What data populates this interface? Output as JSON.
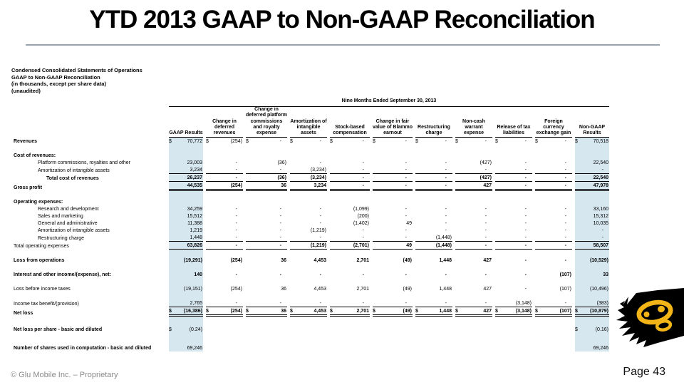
{
  "slide": {
    "title": "YTD 2013 GAAP to Non-GAAP Reconciliation",
    "footer_left": "© Glu Mobile Inc. – Proprietary",
    "footer_right": "Page 43"
  },
  "statement_header": {
    "line1": "Condensed Consolidated Statements of Operations",
    "line2": "GAAP to Non-GAAP Reconciliation",
    "line3": "(in thousands, except per share data)",
    "line4": "(unaudited)"
  },
  "table": {
    "period_header": "Nine Months Ended September 30, 2013",
    "highlight_color": "#d6e7f0",
    "columns": [
      "GAAP Results",
      "Change in deferred revenues",
      "Change in deferred platform commissions and royalty expense",
      "Amortization of intangible assets",
      "Stock-based compensation",
      "Change in fair value of Blammo earnout",
      "Restructuring charge",
      "Non-cash warrant expense",
      "Release of tax liabilities",
      "Foreign currency exchange gain",
      "Non-GAAP Results"
    ],
    "rows": [
      {
        "label": "Revenues",
        "label_bold": true,
        "values_bold": false,
        "indent": 0,
        "dollar": "all",
        "underline": "none",
        "values": [
          "70,772",
          "(254)",
          "-",
          "-",
          "-",
          "-",
          "-",
          "-",
          "-",
          "-",
          "70,518"
        ]
      },
      {
        "type": "spacer",
        "h": 6
      },
      {
        "label": "Cost of revenues:",
        "label_bold": true,
        "values_bold": false,
        "indent": 0,
        "dollar": "none",
        "underline": "none",
        "values": [
          "",
          "",
          "",
          "",
          "",
          "",
          "",
          "",
          "",
          "",
          ""
        ]
      },
      {
        "label": "Platform commissions, royalties and other",
        "label_bold": false,
        "values_bold": false,
        "indent": 1,
        "dollar": "none",
        "underline": "none",
        "values": [
          "23,003",
          "-",
          "(36)",
          "-",
          "-",
          "-",
          "-",
          "(427)",
          "-",
          "-",
          "22,540"
        ]
      },
      {
        "label": "Amortization of intangible assets",
        "label_bold": false,
        "values_bold": false,
        "indent": 1,
        "dollar": "none",
        "underline": "single",
        "values": [
          "3,234",
          "-",
          "-",
          "(3,234)",
          "-",
          "-",
          "-",
          "-",
          "-",
          "-",
          "-"
        ]
      },
      {
        "label": "Total cost of revenues",
        "label_bold": true,
        "values_bold": true,
        "indent": 2,
        "dollar": "none",
        "underline": "single",
        "values": [
          "26,237",
          "-",
          "(36)",
          "(3,234)",
          "-",
          "-",
          "-",
          "(427)",
          "-",
          "-",
          "22,540"
        ]
      },
      {
        "label": "Gross profit",
        "label_bold": true,
        "values_bold": true,
        "indent": 0,
        "dollar": "none",
        "underline": "double",
        "values": [
          "44,535",
          "(254)",
          "36",
          "3,234",
          "-",
          "-",
          "-",
          "427",
          "-",
          "-",
          "47,978"
        ]
      },
      {
        "type": "spacer",
        "h": 7
      },
      {
        "label": "Operating expenses:",
        "label_bold": true,
        "values_bold": false,
        "indent": 0,
        "dollar": "none",
        "underline": "none",
        "values": [
          "",
          "",
          "",
          "",
          "",
          "",
          "",
          "",
          "",
          "",
          ""
        ]
      },
      {
        "label": "Research and development",
        "label_bold": false,
        "values_bold": false,
        "indent": 1,
        "dollar": "none",
        "underline": "none",
        "values": [
          "34,259",
          "-",
          "-",
          "-",
          "(1,099)",
          "-",
          "-",
          "-",
          "-",
          "-",
          "33,160"
        ]
      },
      {
        "label": "Sales and marketing",
        "label_bold": false,
        "values_bold": false,
        "indent": 1,
        "dollar": "none",
        "underline": "none",
        "values": [
          "15,512",
          "-",
          "-",
          "-",
          "(200)",
          "-",
          "-",
          "-",
          "-",
          "-",
          "15,312"
        ]
      },
      {
        "label": "General and administrative",
        "label_bold": false,
        "values_bold": false,
        "indent": 1,
        "dollar": "none",
        "underline": "none",
        "values": [
          "11,388",
          "-",
          "-",
          "-",
          "(1,402)",
          "49",
          "-",
          "-",
          "-",
          "-",
          "10,035"
        ]
      },
      {
        "label": "Amortization of intangible assets",
        "label_bold": false,
        "values_bold": false,
        "indent": 1,
        "dollar": "none",
        "underline": "none",
        "values": [
          "1,219",
          "-",
          "-",
          "(1,219)",
          "-",
          "-",
          "-",
          "-",
          "-",
          "-",
          "-"
        ]
      },
      {
        "label": "Restructuring charge",
        "label_bold": false,
        "values_bold": false,
        "indent": 1,
        "dollar": "none",
        "underline": "single",
        "values": [
          "1,448",
          "-",
          "-",
          "-",
          "-",
          "-",
          "(1,448)",
          "-",
          "-",
          "-",
          "-"
        ]
      },
      {
        "label": "Total operating expenses",
        "label_bold": false,
        "values_bold": true,
        "indent": 0,
        "dollar": "none",
        "underline": "single",
        "values": [
          "63,826",
          "-",
          "-",
          "(1,219)",
          "(2,701)",
          "49",
          "(1,448)",
          "-",
          "-",
          "-",
          "58,507"
        ]
      },
      {
        "type": "spacer",
        "h": 7
      },
      {
        "label": "Loss from operations",
        "label_bold": true,
        "values_bold": true,
        "indent": 0,
        "dollar": "none",
        "underline": "none",
        "values": [
          "(19,291)",
          "(254)",
          "36",
          "4,453",
          "2,701",
          "(49)",
          "1,448",
          "427",
          "-",
          "-",
          "(10,529)"
        ]
      },
      {
        "type": "spacer",
        "h": 7
      },
      {
        "label": "Interest and other income/(expense), net:",
        "label_bold": true,
        "values_bold": true,
        "indent": 0,
        "dollar": "none",
        "underline": "none",
        "values": [
          "140",
          "-",
          "-",
          "-",
          "-",
          "-",
          "-",
          "-",
          "-",
          "(107)",
          "33"
        ]
      },
      {
        "type": "spacer",
        "h": 8
      },
      {
        "label": "Loss before income taxes",
        "label_bold": false,
        "values_bold": false,
        "indent": 0,
        "dollar": "none",
        "underline": "none",
        "values": [
          "(19,151)",
          "(254)",
          "36",
          "4,453",
          "2,701",
          "(49)",
          "1,448",
          "427",
          "-",
          "(107)",
          "(10,496)"
        ]
      },
      {
        "type": "spacer",
        "h": 7
      },
      {
        "label": "Income tax benefit/(provision)",
        "label_bold": false,
        "values_bold": false,
        "indent": 0,
        "dollar": "none",
        "underline": "single",
        "values": [
          "2,765",
          "-",
          "-",
          "-",
          "-",
          "-",
          "-",
          "-",
          "(3,148)",
          "-",
          "(383)"
        ]
      },
      {
        "label": "Net loss",
        "label_bold": true,
        "values_bold": true,
        "indent": 0,
        "dollar": "all",
        "underline": "double",
        "values": [
          "(16,386)",
          "(254)",
          "36",
          "4,453",
          "2,701",
          "(49)",
          "1,448",
          "427",
          "(3,148)",
          "(107)",
          "(10,879)"
        ]
      },
      {
        "type": "spacer",
        "h": 13
      },
      {
        "label": "Net loss per share - basic and diluted",
        "label_bold": true,
        "values_bold": false,
        "indent": 0,
        "dollar": "ends",
        "underline": "none",
        "values": [
          "(0.24)",
          "",
          "",
          "",
          "",
          "",
          "",
          "",
          "",
          "",
          "(0.16)"
        ]
      },
      {
        "type": "spacer",
        "h": 16
      },
      {
        "label": "Number of shares used in computation - basic and diluted",
        "label_bold": true,
        "values_bold": false,
        "indent": 0,
        "dollar": "none",
        "underline": "none",
        "values": [
          "69,246",
          "",
          "",
          "",
          "",
          "",
          "",
          "",
          "",
          "",
          "69,246"
        ]
      }
    ]
  },
  "logo": {
    "splash_color": "#000000",
    "mark_color": "#f2b417"
  }
}
